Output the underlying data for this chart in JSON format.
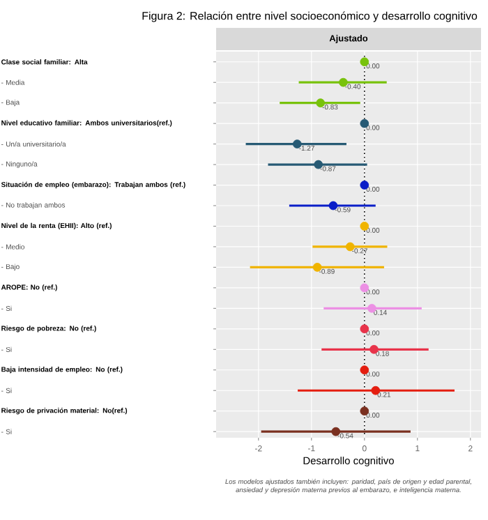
{
  "chart_data": {
    "type": "scatter",
    "orientation": "horizontal",
    "title": "Figura 2: Relación entre nivel socioeconómico y desarrollo cognitivo",
    "subtitle": "Ajustado",
    "xlabel": "Desarrollo cognitivo",
    "annotations": [
      "Los modelos ajustados también incluyen: paridad, país de origen y edad parental, ansiedad y depresión materna previos al embarazo, e inteligencia materna."
    ],
    "categories": [
      "Clase social familiar: Alta",
      "- Media",
      "- Baja",
      "Nivel educativo familiar: Ambos universitarios(ref.)",
      "- Un/a universitario/a",
      "- Ninguno/a",
      "Situación de empleo (embarazo): Trabajan ambos (ref.)",
      "- No trabajan ambos",
      "Nivel de la renta (EHII): Alto (ref.)",
      "- Medio",
      "- Bajo",
      "AROPE: No (ref.)",
      "- Si",
      "Riesgo de pobreza: No (ref.)",
      "- Si",
      "Baja intensidad de empleo: No (ref.)",
      "- Si",
      "Riesgo de privación material: No(ref.)",
      "- Si"
    ],
    "values": [
      0,
      -0.4,
      -0.83,
      0,
      -1.27,
      -0.87,
      0,
      -0.59,
      0,
      -0.27,
      -0.89,
      0,
      0.14,
      0,
      0.18,
      0,
      0.21,
      0,
      -0.54
    ],
    "errors": [
      null,
      [
        -1.24,
        0.42
      ],
      [
        -1.6,
        -0.08
      ],
      null,
      [
        -2.24,
        -0.34
      ],
      [
        -1.82,
        0.05
      ],
      null,
      [
        -1.42,
        0.21
      ],
      null,
      [
        -0.98,
        0.43
      ],
      [
        -2.16,
        0.37
      ],
      null,
      [
        -0.77,
        1.08
      ],
      null,
      [
        -0.81,
        1.21
      ],
      null,
      [
        -1.26,
        1.7
      ],
      null,
      [
        -1.95,
        0.87
      ]
    ],
    "value_labels": [
      "0.00",
      "-0.40",
      "-0.83",
      "0.00",
      "-1.27",
      "-0.87",
      "0.00",
      "-0.59",
      "0.00",
      "-0.27",
      "-0.89",
      "0.00",
      "0.14",
      "0.00",
      "0.18",
      "0.00",
      "0.21",
      "0.00",
      "-0.54"
    ],
    "colors": [
      "#78c20c",
      "#78c20c",
      "#78c20c",
      "#275a74",
      "#275a74",
      "#275a74",
      "#0a1ec8",
      "#0a1ec8",
      "#f0b400",
      "#f0b400",
      "#f0b400",
      "#ec90e4",
      "#ec90e4",
      "#e8334a",
      "#e8334a",
      "#e41e10",
      "#e41e10",
      "#7a3020",
      "#7a3020"
    ],
    "xlim": [
      -2.8,
      2.2
    ],
    "xticks": [
      -2,
      -1,
      0,
      1,
      2
    ],
    "grid": true,
    "marker": "circle",
    "ref_lines": [
      {
        "axis": "x",
        "value": 0,
        "line_style": "dotted",
        "color": "#000000"
      }
    ]
  }
}
